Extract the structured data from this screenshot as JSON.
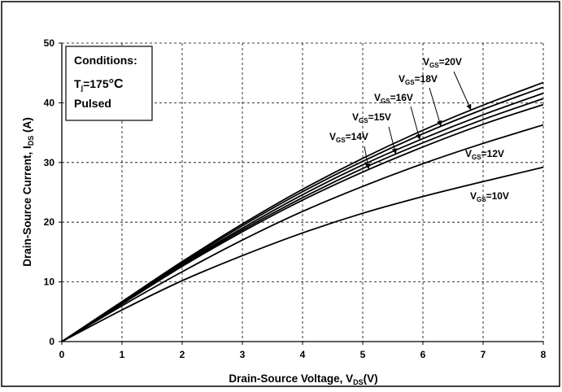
{
  "chart_data": {
    "type": "line",
    "xlabel": {
      "main": "Drain-Source Voltage, V",
      "sub": "DS",
      "tail": "(V)"
    },
    "ylabel": {
      "main": "Drain-Source Current, I",
      "sub": "DS",
      "tail": " (A)"
    },
    "xlim": [
      0,
      8
    ],
    "ylim": [
      0,
      50
    ],
    "xticks": [
      "0",
      "1",
      "2",
      "3",
      "4",
      "5",
      "6",
      "7",
      "8"
    ],
    "yticks": [
      "0",
      "10",
      "20",
      "30",
      "40",
      "50"
    ],
    "grid": true,
    "conditions": {
      "title": "Conditions:",
      "temp_main": "T",
      "temp_sub": "j",
      "temp_tail": "=175",
      "temp_unit": "°C",
      "mode": "Pulsed"
    },
    "series": [
      {
        "name": "VGS=10V",
        "label_main": "V",
        "label_sub": "GS",
        "label_tail": "=10V",
        "x": [
          0,
          1,
          2,
          3,
          4,
          5,
          6,
          7,
          8
        ],
        "y": [
          0,
          5.3,
          10.2,
          14.4,
          18.2,
          21.5,
          24.3,
          26.8,
          29.2
        ]
      },
      {
        "name": "VGS=12V",
        "label_main": "V",
        "label_sub": "GS",
        "label_tail": "=12V",
        "x": [
          0,
          1,
          2,
          3,
          4,
          5,
          6,
          7,
          8
        ],
        "y": [
          0,
          6.0,
          11.7,
          17.0,
          21.8,
          26.0,
          29.8,
          33.2,
          36.3
        ]
      },
      {
        "name": "VGS=14V",
        "label_main": "V",
        "label_sub": "GS",
        "label_tail": "=14V",
        "x": [
          0,
          1,
          2,
          3,
          4,
          5,
          6,
          7,
          8
        ],
        "y": [
          0,
          6.3,
          12.6,
          18.4,
          23.7,
          28.4,
          32.6,
          36.4,
          39.7
        ]
      },
      {
        "name": "VGS=15V",
        "label_main": "V",
        "label_sub": "GS",
        "label_tail": "=15V",
        "x": [
          0,
          1,
          2,
          3,
          4,
          5,
          6,
          7,
          8
        ],
        "y": [
          0,
          6.4,
          12.8,
          18.7,
          24.1,
          29.0,
          33.3,
          37.2,
          40.7
        ]
      },
      {
        "name": "VGS=16V",
        "label_main": "V",
        "label_sub": "GS",
        "label_tail": "=16V",
        "x": [
          0,
          1,
          2,
          3,
          4,
          5,
          6,
          7,
          8
        ],
        "y": [
          0,
          6.5,
          13.0,
          19.0,
          24.6,
          29.6,
          34.0,
          38.0,
          41.6
        ]
      },
      {
        "name": "VGS=18V",
        "label_main": "V",
        "label_sub": "GS",
        "label_tail": "=18V",
        "x": [
          0,
          1,
          2,
          3,
          4,
          5,
          6,
          7,
          8
        ],
        "y": [
          0,
          6.6,
          13.2,
          19.4,
          25.1,
          30.2,
          34.8,
          38.9,
          42.6
        ]
      },
      {
        "name": "VGS=20V",
        "label_main": "V",
        "label_sub": "GS",
        "label_tail": "=20V",
        "x": [
          0,
          1,
          2,
          3,
          4,
          5,
          6,
          7,
          8
        ],
        "y": [
          0,
          6.7,
          13.4,
          19.7,
          25.5,
          30.7,
          35.4,
          39.6,
          43.4
        ]
      }
    ]
  }
}
